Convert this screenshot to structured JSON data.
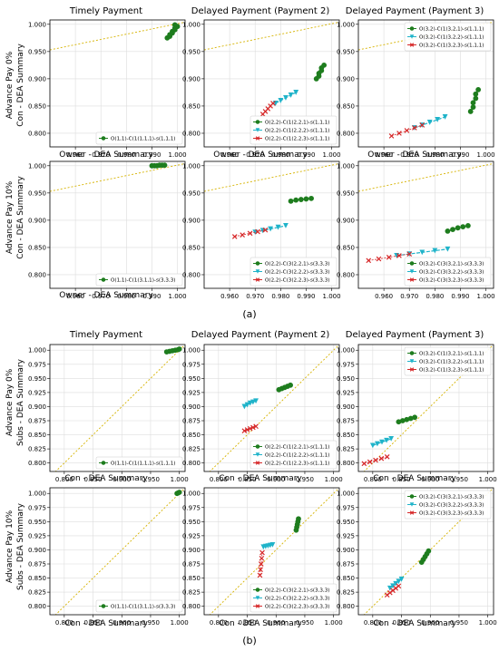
{
  "figure": {
    "panel_labels": [
      "(a)",
      "(b)"
    ],
    "column_titles": [
      "Timely Payment",
      "Delayed Payment (Payment 2)",
      "Delayed Payment (Payment 3)"
    ],
    "colors": {
      "series1": "#1e7d1e",
      "series2": "#1fb3c9",
      "series3": "#d62728",
      "diagonal": "#d6b300",
      "grid": "#dddddd"
    },
    "blocks": [
      {
        "id": "a",
        "row_labels": [
          "Advance Pay 0%",
          "Advance Pay 10%"
        ],
        "ylabel": "Con - DEA Summary",
        "xlabel": "Owner - DEA Summary"
      },
      {
        "id": "b",
        "row_labels": [
          "Advance Pay 0%",
          "Advance Pay 10%"
        ],
        "ylabel": "Subs - DEA Summary",
        "xlabel": "Con - DEA Summary"
      }
    ]
  },
  "chart_data": [
    {
      "type": "scatter",
      "block": "a",
      "row": 0,
      "col": 0,
      "title": "Timely Payment",
      "row_label": "Advance Pay 0%",
      "xlabel": "Owner - DEA Summary",
      "ylabel": "Con - DEA Summary",
      "xlim": [
        0.95,
        1.003
      ],
      "ylim": [
        0.775,
        1.008
      ],
      "xticks": [
        "0.960",
        "0.970",
        "0.980",
        "0.990",
        "1.000"
      ],
      "yticks": [
        "0.800",
        "0.850",
        "0.900",
        "0.950",
        "1.000"
      ],
      "legend_position": "lower-right",
      "series": [
        {
          "name": "O(1,1)-C(1(1,1,1)-s(1,1,1)",
          "marker": "circle",
          "color": "#1e7d1e",
          "x": [
            0.996,
            0.997,
            0.997,
            0.998,
            0.998,
            0.999,
            0.999,
            1.0,
            0.999
          ],
          "y": [
            0.975,
            0.978,
            0.981,
            0.984,
            0.987,
            0.99,
            0.993,
            0.996,
            0.999
          ]
        }
      ]
    },
    {
      "type": "scatter",
      "block": "a",
      "row": 0,
      "col": 1,
      "title": "Delayed Payment (Payment 2)",
      "row_label": "Advance Pay 0%",
      "xlabel": "Owner - DEA Summary",
      "ylabel": "Con - DEA Summary",
      "xlim": [
        0.95,
        1.003
      ],
      "ylim": [
        0.775,
        1.008
      ],
      "xticks": [
        "0.960",
        "0.970",
        "0.980",
        "0.990",
        "1.000"
      ],
      "yticks": [
        "0.800",
        "0.850",
        "0.900",
        "0.950",
        "1.000"
      ],
      "legend_position": "lower-right",
      "series": [
        {
          "name": "O(2,2)-C(1(2,2,1)-s(1,1,1)",
          "marker": "circle",
          "color": "#1e7d1e",
          "x": [
            0.994,
            0.995,
            0.995,
            0.996,
            0.996,
            0.997
          ],
          "y": [
            0.9,
            0.905,
            0.91,
            0.915,
            0.92,
            0.925
          ]
        },
        {
          "name": "O(2,2)-C(1(2,2,2)-s(1,1,1)",
          "marker": "triangle",
          "color": "#1fb3c9",
          "x": [
            0.978,
            0.98,
            0.982,
            0.984,
            0.986
          ],
          "y": [
            0.855,
            0.86,
            0.865,
            0.87,
            0.875
          ]
        },
        {
          "name": "O(2,2)-C(1(2,2,3)-s(1,1,1)",
          "marker": "x",
          "color": "#d62728",
          "x": [
            0.973,
            0.974,
            0.975,
            0.976,
            0.977
          ],
          "y": [
            0.835,
            0.84,
            0.845,
            0.85,
            0.855
          ]
        }
      ]
    },
    {
      "type": "scatter",
      "block": "a",
      "row": 0,
      "col": 2,
      "title": "Delayed Payment (Payment 3)",
      "row_label": "Advance Pay 0%",
      "xlabel": "Owner - DEA Summary",
      "ylabel": "Con - DEA Summary",
      "xlim": [
        0.95,
        1.003
      ],
      "ylim": [
        0.775,
        1.008
      ],
      "xticks": [
        "0.960",
        "0.970",
        "0.980",
        "0.990",
        "1.000"
      ],
      "yticks": [
        "0.800",
        "0.850",
        "0.900",
        "0.950",
        "1.000"
      ],
      "legend_position": "top-right",
      "series": [
        {
          "name": "O(3,2)-C(1(3,2,1)-s(1,1,1)",
          "marker": "circle",
          "color": "#1e7d1e",
          "x": [
            0.994,
            0.995,
            0.995,
            0.996,
            0.996,
            0.997
          ],
          "y": [
            0.84,
            0.848,
            0.856,
            0.864,
            0.872,
            0.88
          ]
        },
        {
          "name": "O(3,2)-C(1(3,2,2)-s(1,1,1)",
          "marker": "triangle",
          "color": "#1fb3c9",
          "x": [
            0.972,
            0.975,
            0.978,
            0.981,
            0.984
          ],
          "y": [
            0.81,
            0.815,
            0.82,
            0.825,
            0.83
          ]
        },
        {
          "name": "O(3,2)-C(1(3,2,3)-s(1,1,1)",
          "marker": "x",
          "color": "#d62728",
          "x": [
            0.963,
            0.966,
            0.969,
            0.972,
            0.975
          ],
          "y": [
            0.795,
            0.8,
            0.805,
            0.81,
            0.815
          ]
        }
      ]
    },
    {
      "type": "scatter",
      "block": "a",
      "row": 1,
      "col": 0,
      "title": "",
      "row_label": "Advance Pay 10%",
      "xlabel": "Owner - DEA Summary",
      "ylabel": "Con - DEA Summary",
      "xlim": [
        0.95,
        1.003
      ],
      "ylim": [
        0.775,
        1.008
      ],
      "xticks": [
        "0.960",
        "0.970",
        "0.980",
        "0.990",
        "1.000"
      ],
      "yticks": [
        "0.800",
        "0.850",
        "0.900",
        "0.950",
        "1.000"
      ],
      "legend_position": "lower-right",
      "series": [
        {
          "name": "O(1,1)-C(1(3,1,1)-s(3,3,3)",
          "marker": "circle",
          "color": "#1e7d1e",
          "x": [
            0.99,
            0.991,
            0.992,
            0.993,
            0.994,
            0.995
          ],
          "y": [
            1.0,
            1.0,
            1.0,
            1.001,
            1.001,
            1.001
          ]
        }
      ]
    },
    {
      "type": "scatter",
      "block": "a",
      "row": 1,
      "col": 1,
      "title": "",
      "row_label": "Advance Pay 10%",
      "xlabel": "Owner - DEA Summary",
      "ylabel": "Con - DEA Summary",
      "xlim": [
        0.95,
        1.003
      ],
      "ylim": [
        0.775,
        1.008
      ],
      "xticks": [
        "0.960",
        "0.970",
        "0.980",
        "0.990",
        "1.000"
      ],
      "yticks": [
        "0.800",
        "0.850",
        "0.900",
        "0.950",
        "1.000"
      ],
      "legend_position": "lower-right",
      "series": [
        {
          "name": "O(2,2)-C(3(2,2,1)-s(3,3,3)",
          "marker": "circle",
          "color": "#1e7d1e",
          "x": [
            0.984,
            0.986,
            0.988,
            0.99,
            0.992
          ],
          "y": [
            0.935,
            0.937,
            0.938,
            0.939,
            0.94
          ]
        },
        {
          "name": "O(2,2)-C(3(2,2,2)-s(3,3,3)",
          "marker": "triangle",
          "color": "#1fb3c9",
          "x": [
            0.97,
            0.973,
            0.976,
            0.979,
            0.982
          ],
          "y": [
            0.878,
            0.881,
            0.884,
            0.887,
            0.89
          ]
        },
        {
          "name": "O(2,2)-C(3(2,2,3)-s(3,3,3)",
          "marker": "x",
          "color": "#d62728",
          "x": [
            0.962,
            0.965,
            0.968,
            0.971,
            0.974
          ],
          "y": [
            0.87,
            0.873,
            0.876,
            0.879,
            0.882
          ]
        }
      ]
    },
    {
      "type": "scatter",
      "block": "a",
      "row": 1,
      "col": 2,
      "title": "",
      "row_label": "Advance Pay 10%",
      "xlabel": "Owner - DEA Summary",
      "ylabel": "Con - DEA Summary",
      "xlim": [
        0.95,
        1.003
      ],
      "ylim": [
        0.775,
        1.008
      ],
      "xticks": [
        "0.960",
        "0.970",
        "0.980",
        "0.990",
        "1.000"
      ],
      "yticks": [
        "0.800",
        "0.850",
        "0.900",
        "0.950",
        "1.000"
      ],
      "legend_position": "lower-right",
      "series": [
        {
          "name": "O(3,2)-C(3(3,2,1)-s(3,3,3)",
          "marker": "circle",
          "color": "#1e7d1e",
          "x": [
            0.985,
            0.987,
            0.989,
            0.991,
            0.993
          ],
          "y": [
            0.88,
            0.883,
            0.886,
            0.888,
            0.89
          ]
        },
        {
          "name": "O(3,2)-C(3(3,2,2)-s(3,3,3)",
          "marker": "triangle",
          "color": "#1fb3c9",
          "x": [
            0.965,
            0.97,
            0.975,
            0.98,
            0.985
          ],
          "y": [
            0.835,
            0.838,
            0.841,
            0.844,
            0.847
          ]
        },
        {
          "name": "O(3,2)-C(3(3,2,3)-s(3,3,3)",
          "marker": "x",
          "color": "#d62728",
          "x": [
            0.954,
            0.958,
            0.962,
            0.966,
            0.97
          ],
          "y": [
            0.826,
            0.829,
            0.832,
            0.835,
            0.838
          ]
        }
      ]
    },
    {
      "type": "scatter",
      "block": "b",
      "row": 0,
      "col": 0,
      "title": "Timely Payment",
      "row_label": "Advance Pay 0%",
      "xlabel": "Con - DEA Summary",
      "ylabel": "Subs - DEA Summary",
      "xlim": [
        0.775,
        1.01
      ],
      "ylim": [
        0.785,
        1.01
      ],
      "xticks": [
        "0.800",
        "0.850",
        "0.900",
        "0.950",
        "1.000"
      ],
      "yticks": [
        "0.800",
        "0.825",
        "0.850",
        "0.875",
        "0.900",
        "0.925",
        "0.950",
        "0.975",
        "1.000"
      ],
      "legend_position": "lower-right",
      "series": [
        {
          "name": "O(1,1)-C(1(1,1,1)-s(1,1,1)",
          "marker": "circle",
          "color": "#1e7d1e",
          "x": [
            0.978,
            0.983,
            0.988,
            0.993,
            0.998,
            1.0
          ],
          "y": [
            0.997,
            0.998,
            0.999,
            1.0,
            1.001,
            1.002
          ]
        }
      ]
    },
    {
      "type": "scatter",
      "block": "b",
      "row": 0,
      "col": 1,
      "title": "Delayed Payment (Payment 2)",
      "row_label": "Advance Pay 0%",
      "xlabel": "Con - DEA Summary",
      "ylabel": "Subs - DEA Summary",
      "xlim": [
        0.775,
        1.01
      ],
      "ylim": [
        0.785,
        1.01
      ],
      "xticks": [
        "0.800",
        "0.850",
        "0.900",
        "0.950",
        "1.000"
      ],
      "yticks": [
        "0.800",
        "0.825",
        "0.850",
        "0.875",
        "0.900",
        "0.925",
        "0.950",
        "0.975",
        "1.000"
      ],
      "legend_position": "lower-right",
      "series": [
        {
          "name": "O(2,2)-C(1(2,2,1)-s(1,1,1)",
          "marker": "circle",
          "color": "#1e7d1e",
          "x": [
            0.905,
            0.91,
            0.915,
            0.92,
            0.925
          ],
          "y": [
            0.93,
            0.932,
            0.934,
            0.936,
            0.938
          ]
        },
        {
          "name": "O(2,2)-C(1(2,2,2)-s(1,1,1)",
          "marker": "triangle",
          "color": "#1fb3c9",
          "x": [
            0.845,
            0.85,
            0.855,
            0.86,
            0.865
          ],
          "y": [
            0.9,
            0.903,
            0.906,
            0.908,
            0.91
          ]
        },
        {
          "name": "O(2,2)-C(1(2,2,3)-s(1,1,1)",
          "marker": "x",
          "color": "#d62728",
          "x": [
            0.845,
            0.85,
            0.855,
            0.86,
            0.865
          ],
          "y": [
            0.857,
            0.859,
            0.861,
            0.863,
            0.865
          ]
        }
      ]
    },
    {
      "type": "scatter",
      "block": "b",
      "row": 0,
      "col": 2,
      "title": "Delayed Payment (Payment 3)",
      "row_label": "Advance Pay 0%",
      "xlabel": "Con - DEA Summary",
      "ylabel": "Subs - DEA Summary",
      "xlim": [
        0.775,
        1.01
      ],
      "ylim": [
        0.785,
        1.01
      ],
      "xticks": [
        "0.800",
        "0.850",
        "0.900",
        "0.950",
        "1.000"
      ],
      "yticks": [
        "0.800",
        "0.825",
        "0.850",
        "0.875",
        "0.900",
        "0.925",
        "0.950",
        "0.975",
        "1.000"
      ],
      "legend_position": "top-right",
      "series": [
        {
          "name": "O(3,2)-C(1(3,2,1)-s(1,1,1)",
          "marker": "circle",
          "color": "#1e7d1e",
          "x": [
            0.845,
            0.852,
            0.859,
            0.866,
            0.873
          ],
          "y": [
            0.873,
            0.875,
            0.877,
            0.879,
            0.881
          ]
        },
        {
          "name": "O(3,2)-C(1(3,2,2)-s(1,1,1)",
          "marker": "triangle",
          "color": "#1fb3c9",
          "x": [
            0.8,
            0.808,
            0.816,
            0.824,
            0.832
          ],
          "y": [
            0.831,
            0.834,
            0.837,
            0.84,
            0.843
          ]
        },
        {
          "name": "O(3,2)-C(1(3,2,3)-s(1,1,1)",
          "marker": "x",
          "color": "#d62728",
          "x": [
            0.785,
            0.795,
            0.805,
            0.815,
            0.825
          ],
          "y": [
            0.799,
            0.802,
            0.805,
            0.808,
            0.811
          ]
        }
      ]
    },
    {
      "type": "scatter",
      "block": "b",
      "row": 1,
      "col": 0,
      "title": "",
      "row_label": "Advance Pay 10%",
      "xlabel": "Con - DEA Summary",
      "ylabel": "Subs - DEA Summary",
      "xlim": [
        0.775,
        1.01
      ],
      "ylim": [
        0.785,
        1.01
      ],
      "xticks": [
        "0.800",
        "0.850",
        "0.900",
        "0.950",
        "1.000"
      ],
      "yticks": [
        "0.800",
        "0.825",
        "0.850",
        "0.875",
        "0.900",
        "0.925",
        "0.950",
        "0.975",
        "1.000"
      ],
      "legend_position": "lower-right",
      "series": [
        {
          "name": "O(1,1)-C(1(3,1,1)-s(3,3,3)",
          "marker": "circle",
          "color": "#1e7d1e",
          "x": [
            0.996,
            0.998,
            1.0
          ],
          "y": [
            1.0,
            1.001,
            1.002
          ]
        }
      ]
    },
    {
      "type": "scatter",
      "block": "b",
      "row": 1,
      "col": 1,
      "title": "",
      "row_label": "Advance Pay 10%",
      "xlabel": "Con - DEA Summary",
      "ylabel": "Subs - DEA Summary",
      "xlim": [
        0.775,
        1.01
      ],
      "ylim": [
        0.785,
        1.01
      ],
      "xticks": [
        "0.800",
        "0.850",
        "0.900",
        "0.950",
        "1.000"
      ],
      "yticks": [
        "0.800",
        "0.825",
        "0.850",
        "0.875",
        "0.900",
        "0.925",
        "0.950",
        "0.975",
        "1.000"
      ],
      "legend_position": "lower-right",
      "series": [
        {
          "name": "O(2,2)-C(3(2,2,1)-s(3,3,3)",
          "marker": "circle",
          "color": "#1e7d1e",
          "x": [
            0.935,
            0.936,
            0.937,
            0.938,
            0.939
          ],
          "y": [
            0.935,
            0.94,
            0.945,
            0.95,
            0.955
          ]
        },
        {
          "name": "O(2,2)-C(3(2,2,2)-s(3,3,3)",
          "marker": "triangle",
          "color": "#1fb3c9",
          "x": [
            0.878,
            0.882,
            0.886,
            0.89,
            0.894
          ],
          "y": [
            0.905,
            0.906,
            0.907,
            0.908,
            0.909
          ]
        },
        {
          "name": "O(2,2)-C(3(2,2,3)-s(3,3,3)",
          "marker": "x",
          "color": "#d62728",
          "x": [
            0.872,
            0.873,
            0.874,
            0.875,
            0.876
          ],
          "y": [
            0.855,
            0.865,
            0.875,
            0.885,
            0.895
          ]
        }
      ]
    },
    {
      "type": "scatter",
      "block": "b",
      "row": 1,
      "col": 2,
      "title": "",
      "row_label": "Advance Pay 10%",
      "xlabel": "Con - DEA Summary",
      "ylabel": "Subs - DEA Summary",
      "xlim": [
        0.775,
        1.01
      ],
      "ylim": [
        0.785,
        1.01
      ],
      "xticks": [
        "0.800",
        "0.850",
        "0.900",
        "0.950",
        "1.000"
      ],
      "yticks": [
        "0.800",
        "0.825",
        "0.850",
        "0.875",
        "0.900",
        "0.925",
        "0.950",
        "0.975",
        "1.000"
      ],
      "legend_position": "top-right",
      "series": [
        {
          "name": "O(3,2)-C(3(3,2,1)-s(3,3,3)",
          "marker": "circle",
          "color": "#1e7d1e",
          "x": [
            0.885,
            0.888,
            0.891,
            0.894,
            0.897
          ],
          "y": [
            0.878,
            0.883,
            0.888,
            0.893,
            0.898
          ]
        },
        {
          "name": "O(3,2)-C(3(3,2,2)-s(3,3,3)",
          "marker": "triangle",
          "color": "#1fb3c9",
          "x": [
            0.83,
            0.835,
            0.84,
            0.845,
            0.85
          ],
          "y": [
            0.832,
            0.836,
            0.84,
            0.844,
            0.848
          ]
        },
        {
          "name": "O(3,2)-C(3(3,2,3)-s(3,3,3)",
          "marker": "x",
          "color": "#d62728",
          "x": [
            0.825,
            0.83,
            0.835,
            0.84,
            0.845
          ],
          "y": [
            0.82,
            0.824,
            0.828,
            0.832,
            0.836
          ]
        }
      ]
    }
  ]
}
